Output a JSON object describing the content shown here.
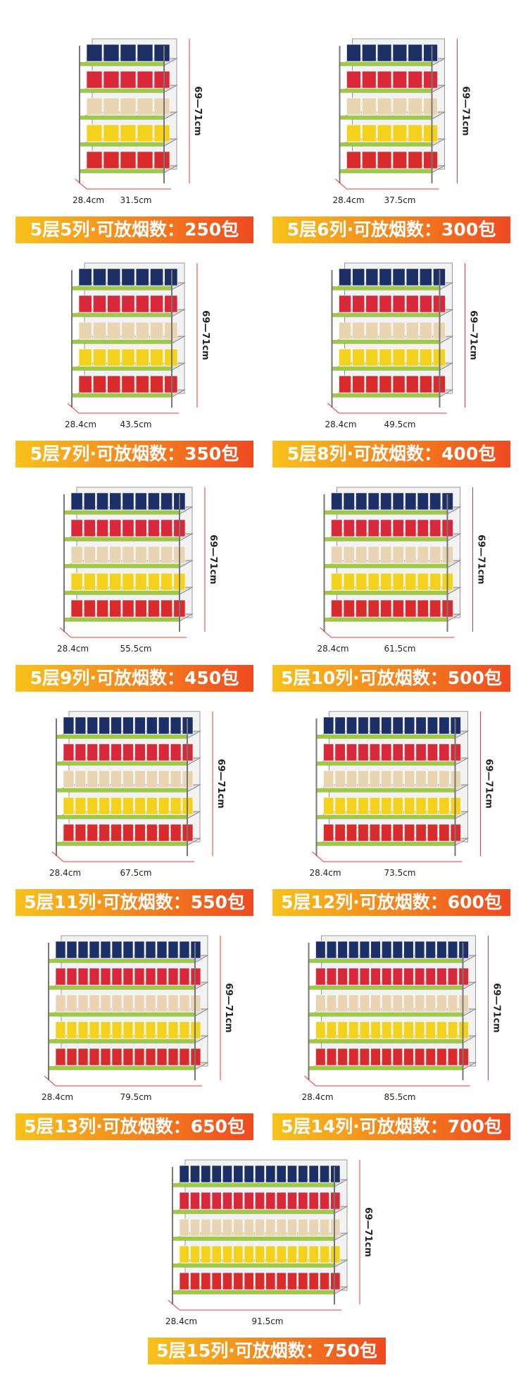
{
  "items": [
    {
      "height": "69—71cm",
      "depth": "28.4cm",
      "width": "31.5cm",
      "label": "5层5列·可放烟数：250包"
    },
    {
      "height": "69—71cm",
      "depth": "28.4cm",
      "width": "37.5cm",
      "label": "5层6列·可放烟数：300包"
    },
    {
      "height": "69—71cm",
      "depth": "28.4cm",
      "width": "43.5cm",
      "label": "5层7列·可放烟数：350包"
    },
    {
      "height": "69—71cm",
      "depth": "28.4cm",
      "width": "49.5cm",
      "label": "5层8列·可放烟数：400包"
    },
    {
      "height": "69—71cm",
      "depth": "28.4cm",
      "width": "55.5cm",
      "label": "5层9列·可放烟数：450包"
    },
    {
      "height": "69—71cm",
      "depth": "28.4cm",
      "width": "61.5cm",
      "label": "5层10列·可放烟数：500包"
    },
    {
      "height": "69—71cm",
      "depth": "28.4cm",
      "width": "67.5cm",
      "label": "5层11列·可放烟数：550包"
    },
    {
      "height": "69—71cm",
      "depth": "28.4cm",
      "width": "73.5cm",
      "label": "5层12列·可放烟数：600包"
    },
    {
      "height": "69—71cm",
      "depth": "28.4cm",
      "width": "79.5cm",
      "label": "5层13列·可放烟数：650包"
    },
    {
      "height": "69—71cm",
      "depth": "28.4cm",
      "width": "85.5cm",
      "label": "5层14列·可放烟数：700包"
    },
    {
      "height": "69—71cm",
      "depth": "28.4cm",
      "width": "91.5cm",
      "label": "5层15列·可放烟数：750包"
    }
  ]
}
